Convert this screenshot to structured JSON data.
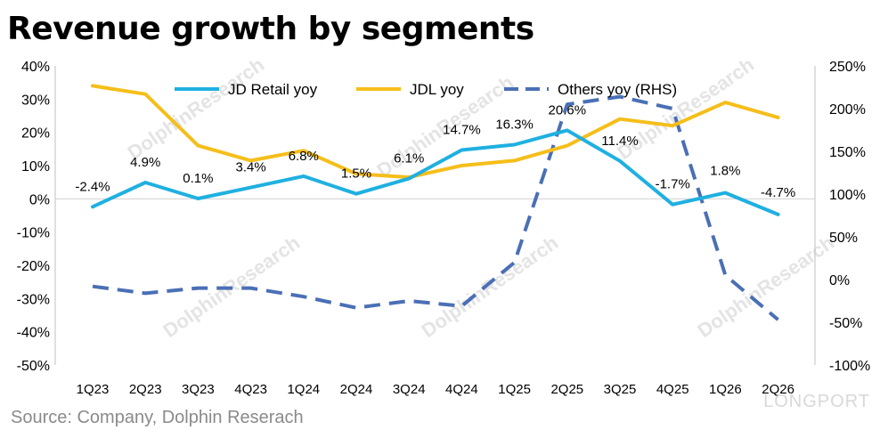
{
  "title": "Revenue growth by segments",
  "source": "Source: Company, Dolphin Reserach",
  "watermark": {
    "text": "DolphinResearch",
    "brand": "LONGPORT"
  },
  "chart_data": {
    "type": "line",
    "title": "Revenue growth by segments",
    "categories": [
      "1Q23",
      "2Q23",
      "3Q23",
      "4Q23",
      "1Q24",
      "2Q24",
      "3Q24",
      "4Q24",
      "1Q25",
      "2Q25",
      "3Q25",
      "4Q25",
      "1Q26",
      "2Q26"
    ],
    "left_axis": {
      "ticks": [
        "40%",
        "30%",
        "20%",
        "10%",
        "0%",
        "-10%",
        "-20%",
        "-30%",
        "-40%",
        "-50%"
      ],
      "ylim": [
        -50,
        40
      ]
    },
    "right_axis": {
      "ticks": [
        "250%",
        "200%",
        "150%",
        "100%",
        "50%",
        "0%",
        "-50%",
        "-100%"
      ],
      "ylim": [
        -100,
        250
      ]
    },
    "legend_position": "top",
    "series": [
      {
        "name": "JD Retail yoy",
        "axis": "left",
        "color": "#1fb0e0",
        "style": "solid",
        "values": [
          -2.4,
          4.9,
          0.1,
          3.4,
          6.8,
          1.5,
          6.1,
          14.7,
          16.3,
          20.6,
          11.4,
          -1.7,
          1.8,
          -4.7
        ],
        "labels": [
          "-2.4%",
          "4.9%",
          "0.1%",
          "3.4%",
          "6.8%",
          "1.5%",
          "6.1%",
          "14.7%",
          "16.3%",
          "20.6%",
          "11.4%",
          "-1.7%",
          "1.8%",
          "-4.7%"
        ]
      },
      {
        "name": "JDL yoy",
        "axis": "left",
        "color": "#f5be1a",
        "style": "solid",
        "values": [
          34,
          31.5,
          16,
          11.5,
          14.5,
          7.5,
          6.5,
          10,
          11.5,
          16,
          24,
          22,
          29,
          24.5
        ]
      },
      {
        "name": "Others yoy (RHS)",
        "axis": "right",
        "color": "#4a6fb5",
        "style": "dashed",
        "values": [
          -8,
          -16,
          -10,
          -10,
          -20,
          -33,
          -25,
          -31,
          20,
          205,
          214,
          200,
          5,
          -47
        ]
      }
    ]
  }
}
